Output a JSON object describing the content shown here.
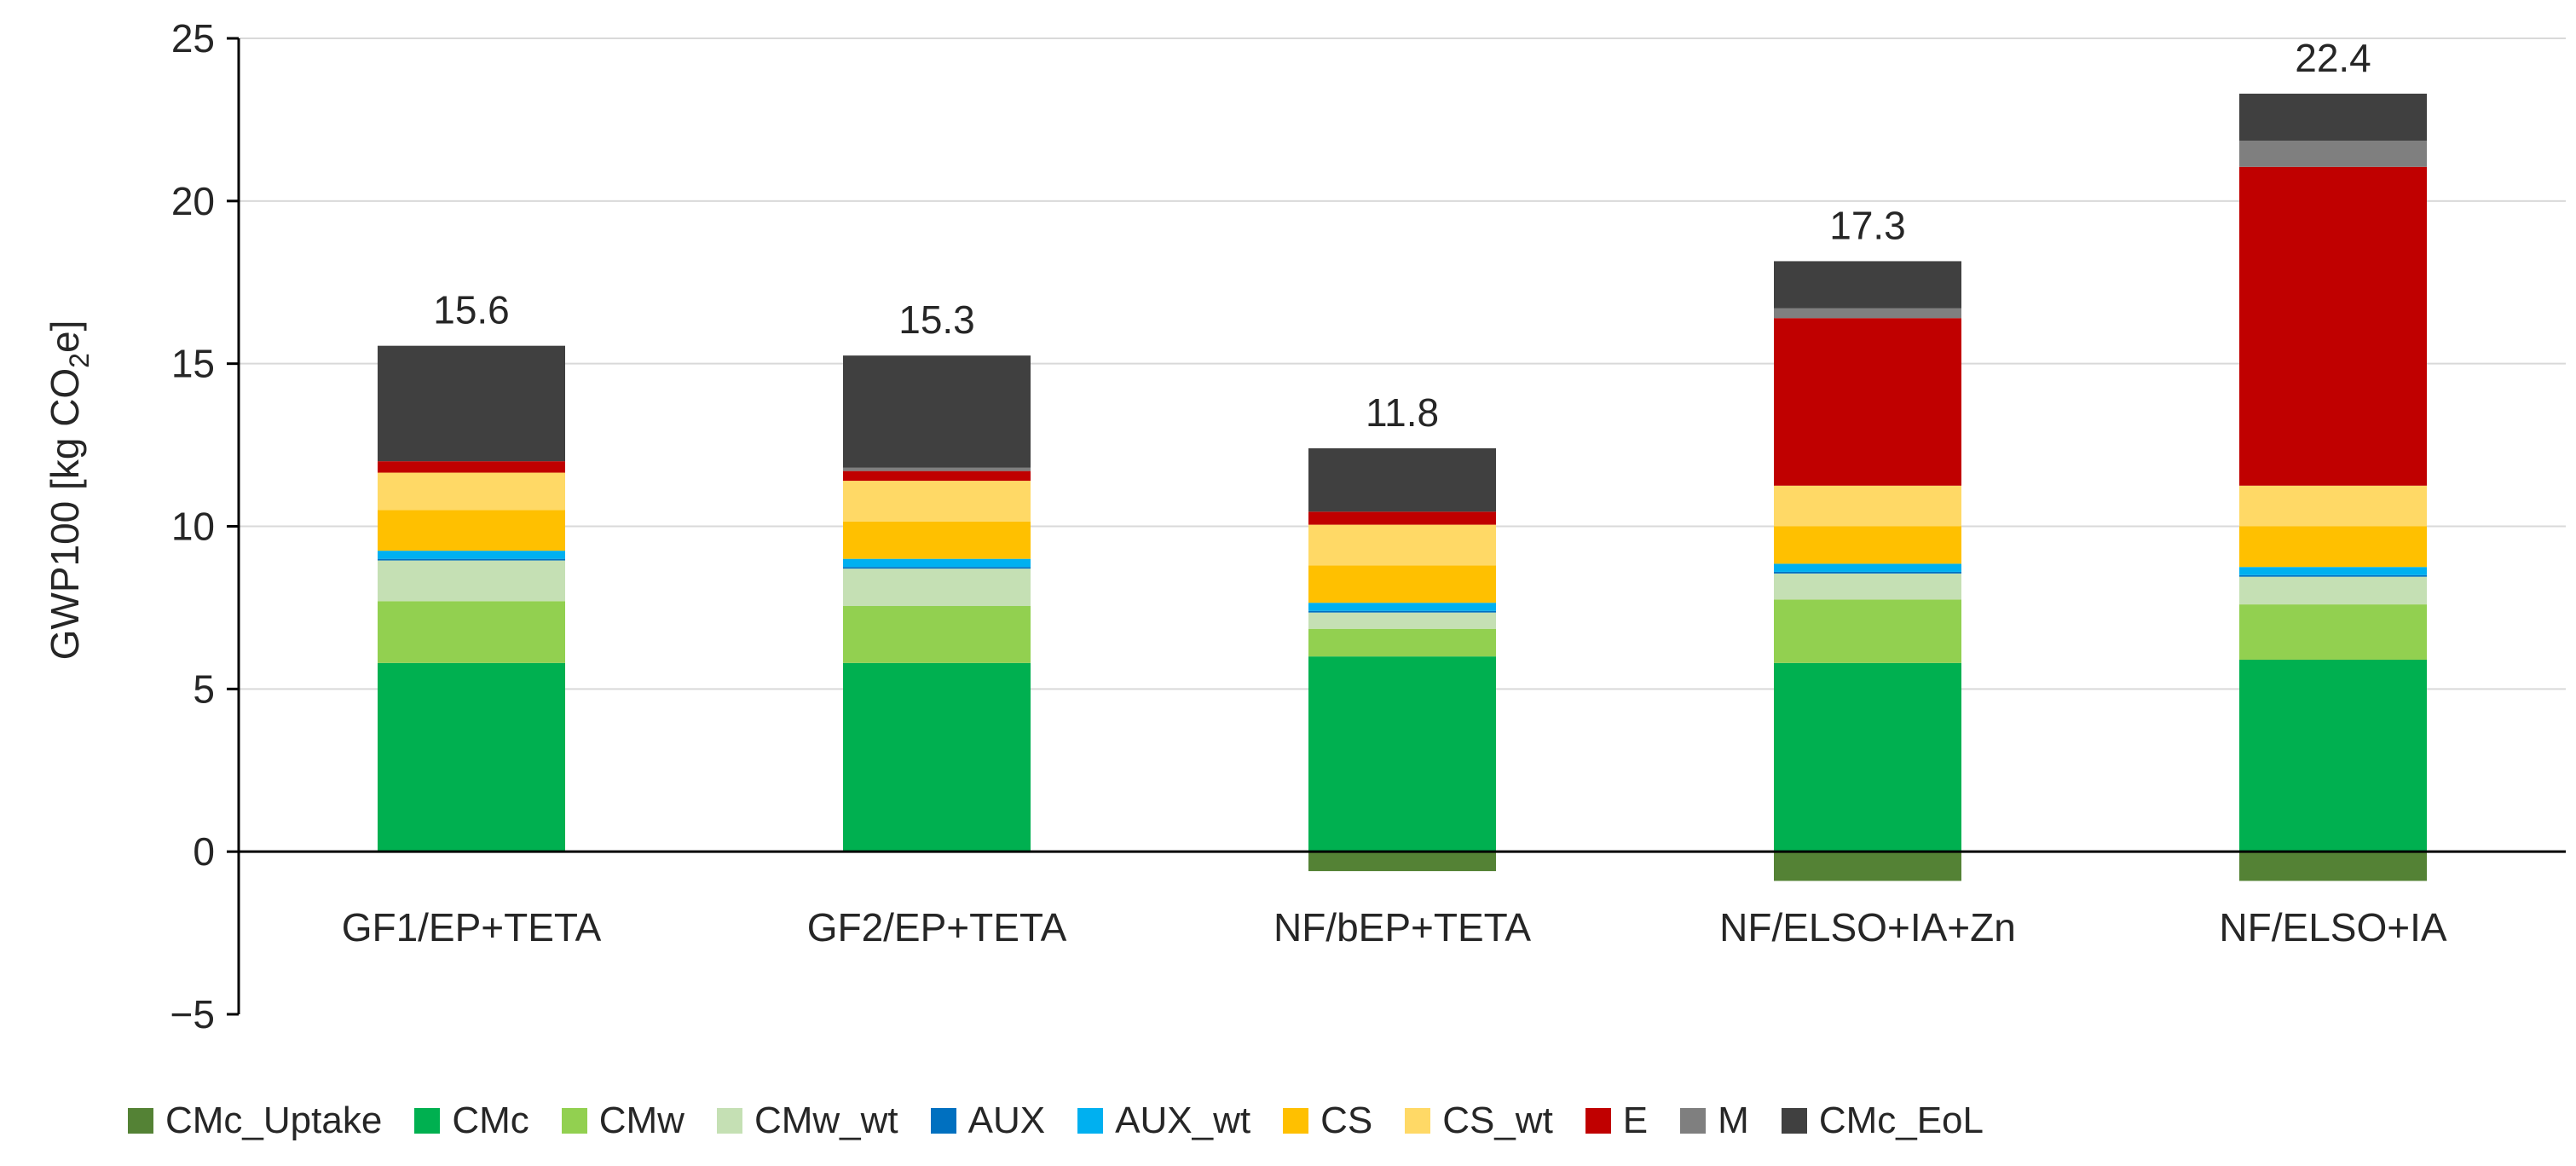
{
  "chart_data": {
    "type": "bar",
    "stacked": true,
    "title": "",
    "xlabel": "",
    "ylabel": {
      "main": "GWP100 [kg CO",
      "sub": "2",
      "rest": "e]"
    },
    "ylim": [
      -5,
      25
    ],
    "yticks": [
      25,
      20,
      15,
      10,
      5,
      0,
      -5
    ],
    "ytick_labels": [
      "25",
      "20",
      "15",
      "10",
      "5",
      "0",
      "−5"
    ],
    "grid": true,
    "legend_position": "bottom",
    "categories": [
      "GF1/EP+TETA",
      "GF2/EP+TETA",
      "NF/bEP+TETA",
      "NF/ELSO+IA+Zn",
      "NF/ELSO+IA"
    ],
    "totals": [
      "15.6",
      "15.3",
      "11.8",
      "17.3",
      "22.4"
    ],
    "series": [
      {
        "name": "CMc_Uptake",
        "color": "#548235",
        "values": [
          0,
          0,
          -0.6,
          -0.9,
          -0.9
        ]
      },
      {
        "name": "CMc",
        "color": "#00B050",
        "values": [
          5.8,
          5.8,
          6.0,
          5.8,
          5.9
        ]
      },
      {
        "name": "CMw",
        "color": "#92D050",
        "values": [
          1.9,
          1.75,
          0.85,
          1.95,
          1.7
        ]
      },
      {
        "name": "CMw_wt",
        "color": "#C5E0B4",
        "values": [
          1.25,
          1.15,
          0.5,
          0.8,
          0.85
        ]
      },
      {
        "name": "AUX",
        "color": "#0070C0",
        "values": [
          0.05,
          0.05,
          0.05,
          0.05,
          0.05
        ]
      },
      {
        "name": "AUX_wt",
        "color": "#00B0F0",
        "values": [
          0.25,
          0.25,
          0.25,
          0.25,
          0.25
        ]
      },
      {
        "name": "CS",
        "color": "#FFC000",
        "values": [
          1.25,
          1.15,
          1.15,
          1.15,
          1.25
        ]
      },
      {
        "name": "CS_wt",
        "color": "#FFD966",
        "values": [
          1.15,
          1.25,
          1.25,
          1.25,
          1.25
        ]
      },
      {
        "name": "E",
        "color": "#C00000",
        "values": [
          0.35,
          0.3,
          0.4,
          5.15,
          9.8
        ]
      },
      {
        "name": "M",
        "color": "#7F7F7F",
        "values": [
          0,
          0.1,
          0,
          0.3,
          0.8
        ]
      },
      {
        "name": "CMc_EoL",
        "color": "#404040",
        "values": [
          3.55,
          3.45,
          1.95,
          1.45,
          1.45
        ]
      }
    ]
  }
}
